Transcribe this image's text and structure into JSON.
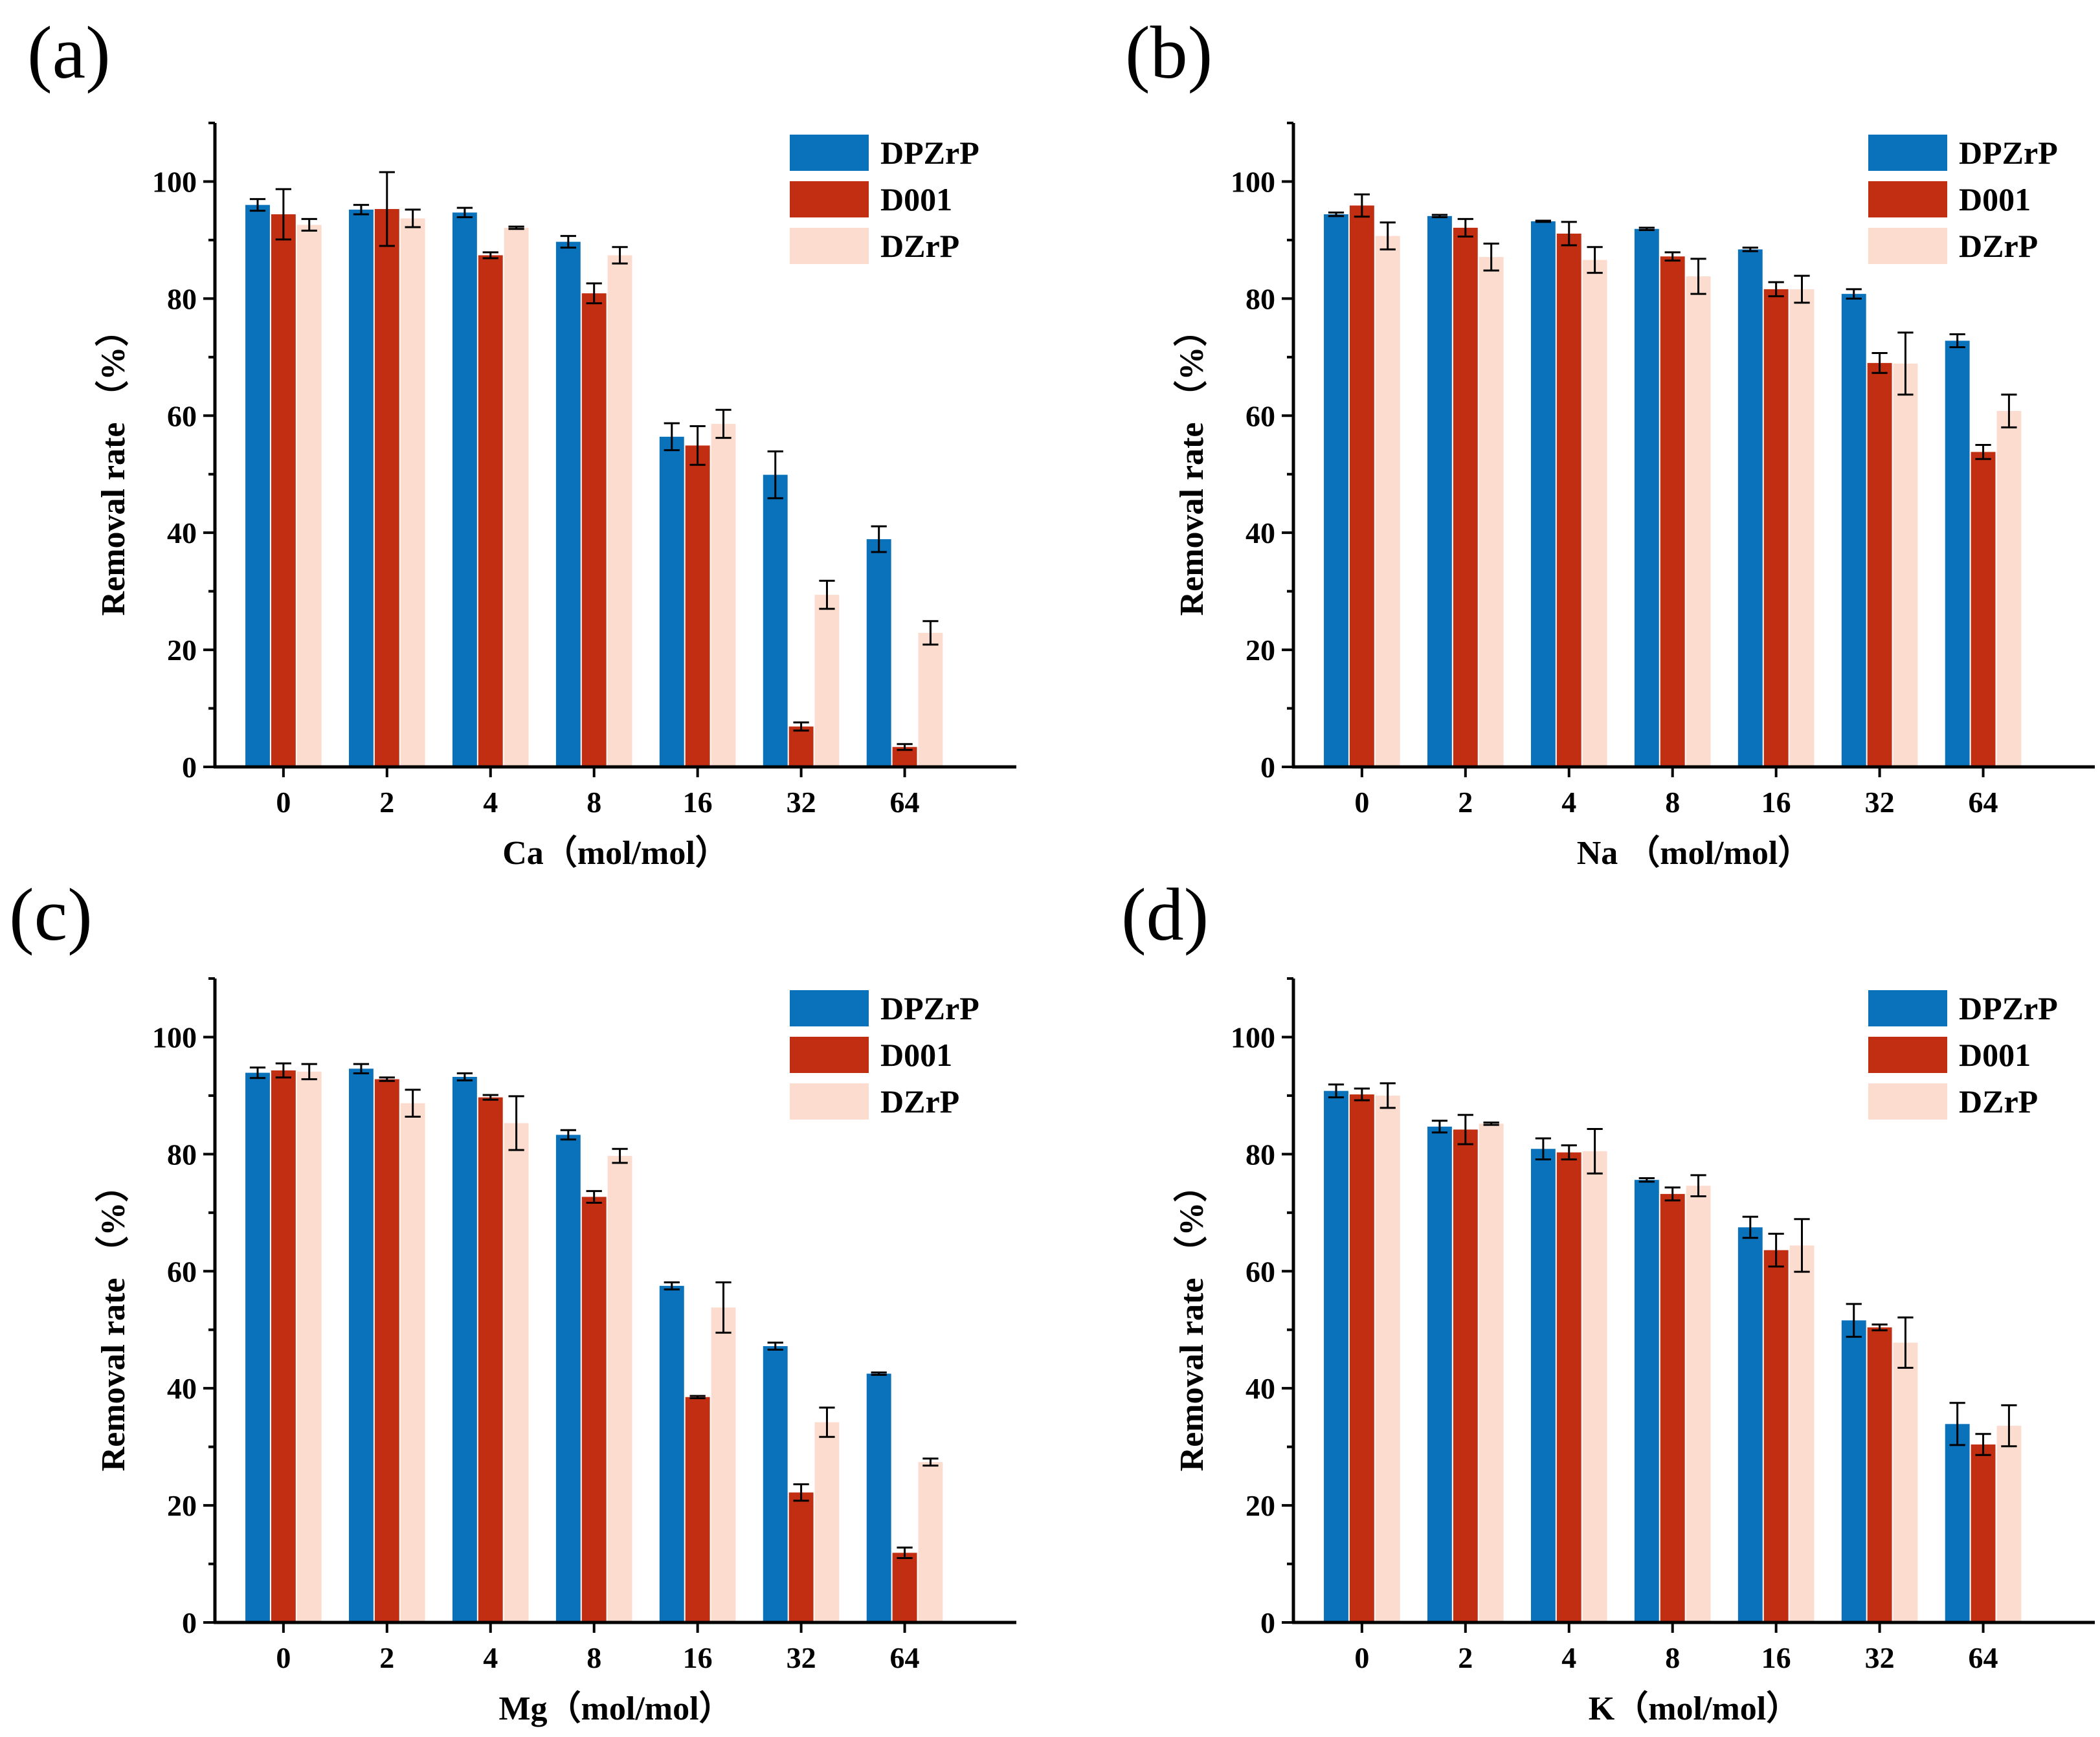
{
  "colors": {
    "DPZrP": "#0a72bb",
    "D001": "#c22e12",
    "DZrP": "#fcdccf"
  },
  "chart_data": [
    {
      "type": "bar",
      "panel_label": "(a)",
      "xlabel": "Ca（mol/mol）",
      "ylabel": "Removal rate （%）",
      "categories": [
        "0",
        "2",
        "4",
        "8",
        "16",
        "32",
        "64"
      ],
      "ylim": [
        0,
        110
      ],
      "yticks": [
        0,
        20,
        40,
        60,
        80,
        100
      ],
      "legend_position": "top-right",
      "series": [
        {
          "name": "DPZrP",
          "values": [
            96,
            95.2,
            94.7,
            89.7,
            56.4,
            49.9,
            38.9
          ],
          "errors": [
            1.0,
            0.8,
            0.8,
            1.0,
            2.3,
            4.0,
            2.2
          ]
        },
        {
          "name": "D001",
          "values": [
            94.4,
            95.3,
            87.4,
            80.9,
            54.9,
            6.9,
            3.4
          ],
          "errors": [
            4.3,
            6.3,
            0.5,
            1.7,
            3.3,
            0.7,
            0.5
          ]
        },
        {
          "name": "DZrP",
          "values": [
            92.6,
            93.7,
            92.1,
            87.4,
            58.6,
            29.4,
            22.9
          ],
          "errors": [
            1.0,
            1.5,
            0.2,
            1.4,
            2.4,
            2.4,
            2.0
          ]
        }
      ]
    },
    {
      "type": "bar",
      "panel_label": "(b)",
      "xlabel": "Na （mol/mol）",
      "ylabel": "Removal rate （%）",
      "categories": [
        "0",
        "2",
        "4",
        "8",
        "16",
        "32",
        "64"
      ],
      "ylim": [
        0,
        110
      ],
      "yticks": [
        0,
        20,
        40,
        60,
        80,
        100
      ],
      "legend_position": "top-right",
      "series": [
        {
          "name": "DPZrP",
          "values": [
            94.4,
            94.1,
            93.2,
            91.9,
            88.4,
            80.8,
            72.8
          ],
          "errors": [
            0.3,
            0.2,
            0.1,
            0.2,
            0.3,
            0.8,
            1.1
          ]
        },
        {
          "name": "D001",
          "values": [
            95.9,
            92.1,
            91.1,
            87.2,
            81.6,
            69.0,
            53.8
          ],
          "errors": [
            1.9,
            1.5,
            2.0,
            0.7,
            1.2,
            1.7,
            1.2
          ]
        },
        {
          "name": "DZrP",
          "values": [
            90.7,
            87.1,
            86.6,
            83.8,
            81.6,
            68.9,
            60.8
          ],
          "errors": [
            2.3,
            2.3,
            2.2,
            3.0,
            2.3,
            5.3,
            2.8
          ]
        }
      ]
    },
    {
      "type": "bar",
      "panel_label": "(c)",
      "xlabel": "Mg（mol/mol）",
      "ylabel": "Removal rate （%）",
      "categories": [
        "0",
        "2",
        "4",
        "8",
        "16",
        "32",
        "64"
      ],
      "ylim": [
        0,
        110
      ],
      "yticks": [
        0,
        20,
        40,
        60,
        80,
        100
      ],
      "legend_position": "top-right",
      "series": [
        {
          "name": "DPZrP",
          "values": [
            93.9,
            94.6,
            93.2,
            83.3,
            57.5,
            47.2,
            42.5
          ],
          "errors": [
            0.9,
            0.8,
            0.6,
            0.8,
            0.6,
            0.6,
            0.2
          ]
        },
        {
          "name": "D001",
          "values": [
            94.3,
            92.8,
            89.7,
            72.7,
            38.5,
            22.2,
            11.9
          ],
          "errors": [
            1.2,
            0.3,
            0.4,
            1.0,
            0.2,
            1.4,
            0.9
          ]
        },
        {
          "name": "DZrP",
          "values": [
            94.1,
            88.7,
            85.3,
            79.7,
            53.8,
            34.2,
            27.4
          ],
          "errors": [
            1.3,
            2.3,
            4.6,
            1.2,
            4.3,
            2.5,
            0.6
          ]
        }
      ]
    },
    {
      "type": "bar",
      "panel_label": "(d)",
      "xlabel": "K（mol/mol）",
      "ylabel": "Removal rate （%）",
      "categories": [
        "0",
        "2",
        "4",
        "8",
        "16",
        "32",
        "64"
      ],
      "ylim": [
        0,
        110
      ],
      "yticks": [
        0,
        20,
        40,
        60,
        80,
        100
      ],
      "legend_position": "top-right",
      "series": [
        {
          "name": "DPZrP",
          "values": [
            90.8,
            84.7,
            80.9,
            75.6,
            67.5,
            51.6,
            33.9
          ],
          "errors": [
            1.1,
            1.0,
            1.8,
            0.3,
            1.8,
            2.8,
            3.6
          ]
        },
        {
          "name": "D001",
          "values": [
            90.2,
            84.2,
            80.3,
            73.2,
            63.6,
            50.4,
            30.4
          ],
          "errors": [
            1.0,
            2.5,
            1.2,
            1.1,
            2.8,
            0.5,
            1.8
          ]
        },
        {
          "name": "DZrP",
          "values": [
            90.0,
            85.2,
            80.5,
            74.6,
            64.4,
            47.8,
            33.6
          ],
          "errors": [
            2.1,
            0.2,
            3.8,
            1.8,
            4.5,
            4.3,
            3.5
          ]
        }
      ]
    }
  ]
}
